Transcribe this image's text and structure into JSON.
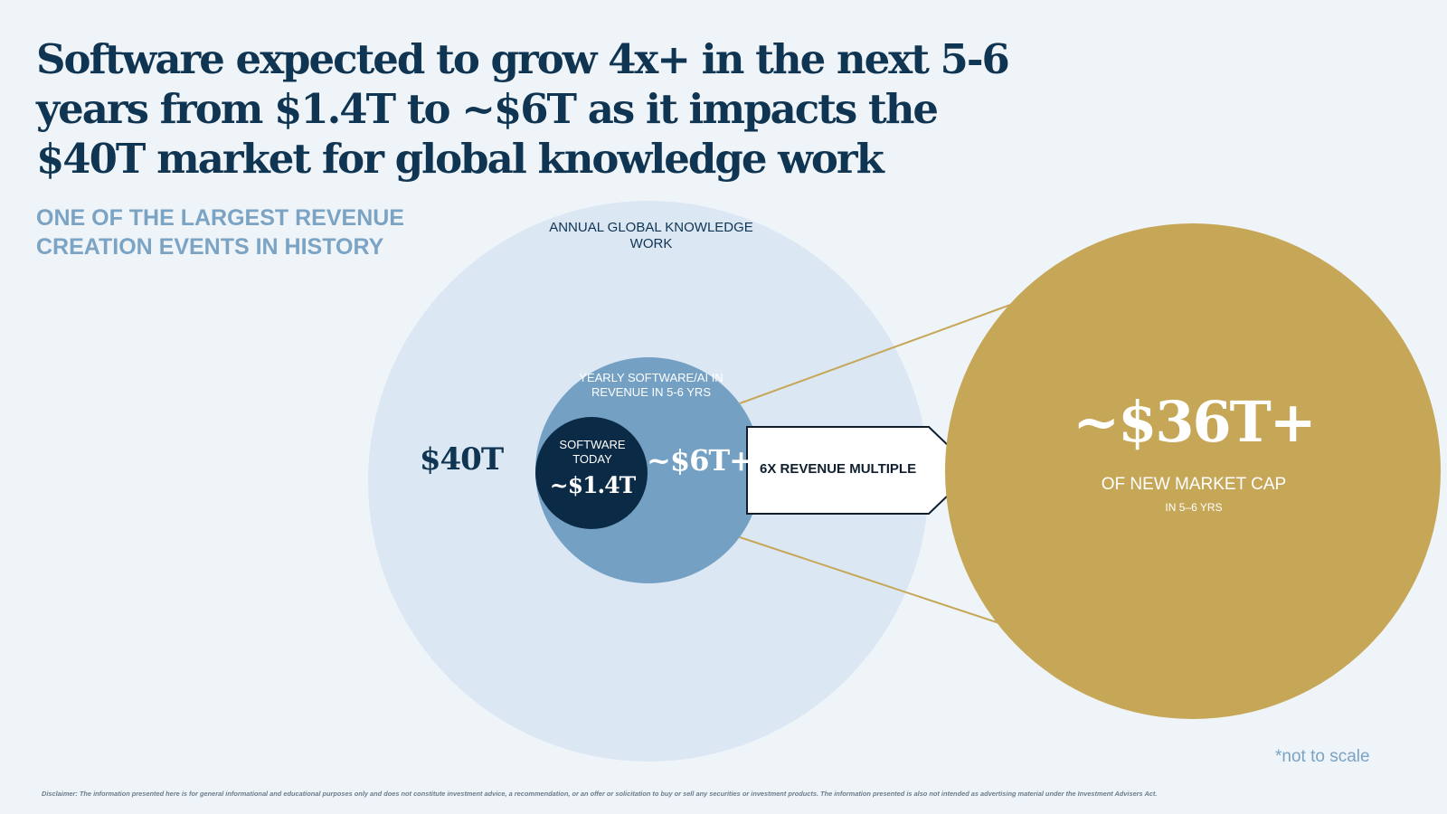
{
  "title": "Software expected to grow 4x+ in the next 5-6 years from $1.4T to ~$6T as it impacts the $40T market for global knowledge work",
  "subtitle": "ONE OF THE LARGEST REVENUE CREATION EVENTS IN HISTORY",
  "diagram": {
    "outer_circle": {
      "label": "ANNUAL GLOBAL KNOWLEDGE WORK",
      "value": "$40T",
      "color": "#dce7f4"
    },
    "middle_circle": {
      "label": "YEARLY SOFTWARE/AI IN REVENUE IN 5-6 YRS",
      "value": "~$6T+",
      "color": "#74a0c3"
    },
    "inner_circle": {
      "label": "SOFTWARE TODAY",
      "value": "~$1.4T",
      "color": "#0b2a45"
    },
    "arrow": {
      "label": "6X REVENUE MULTIPLE",
      "color": "#ffffff"
    },
    "gold_circle": {
      "value": "~$36T+",
      "label": "OF NEW MARKET CAP",
      "sublabel": "IN 5–6 YRS",
      "color": "#c6a758"
    }
  },
  "footnote": "*not to scale",
  "disclaimer": "Disclaimer: The information presented here is for general informational and educational purposes only and does not constitute investment advice, a recommendation, or an offer or solicitation to buy or sell any securities or investment products. The information presented is also not intended as advertising material under the Investment Advisers Act."
}
